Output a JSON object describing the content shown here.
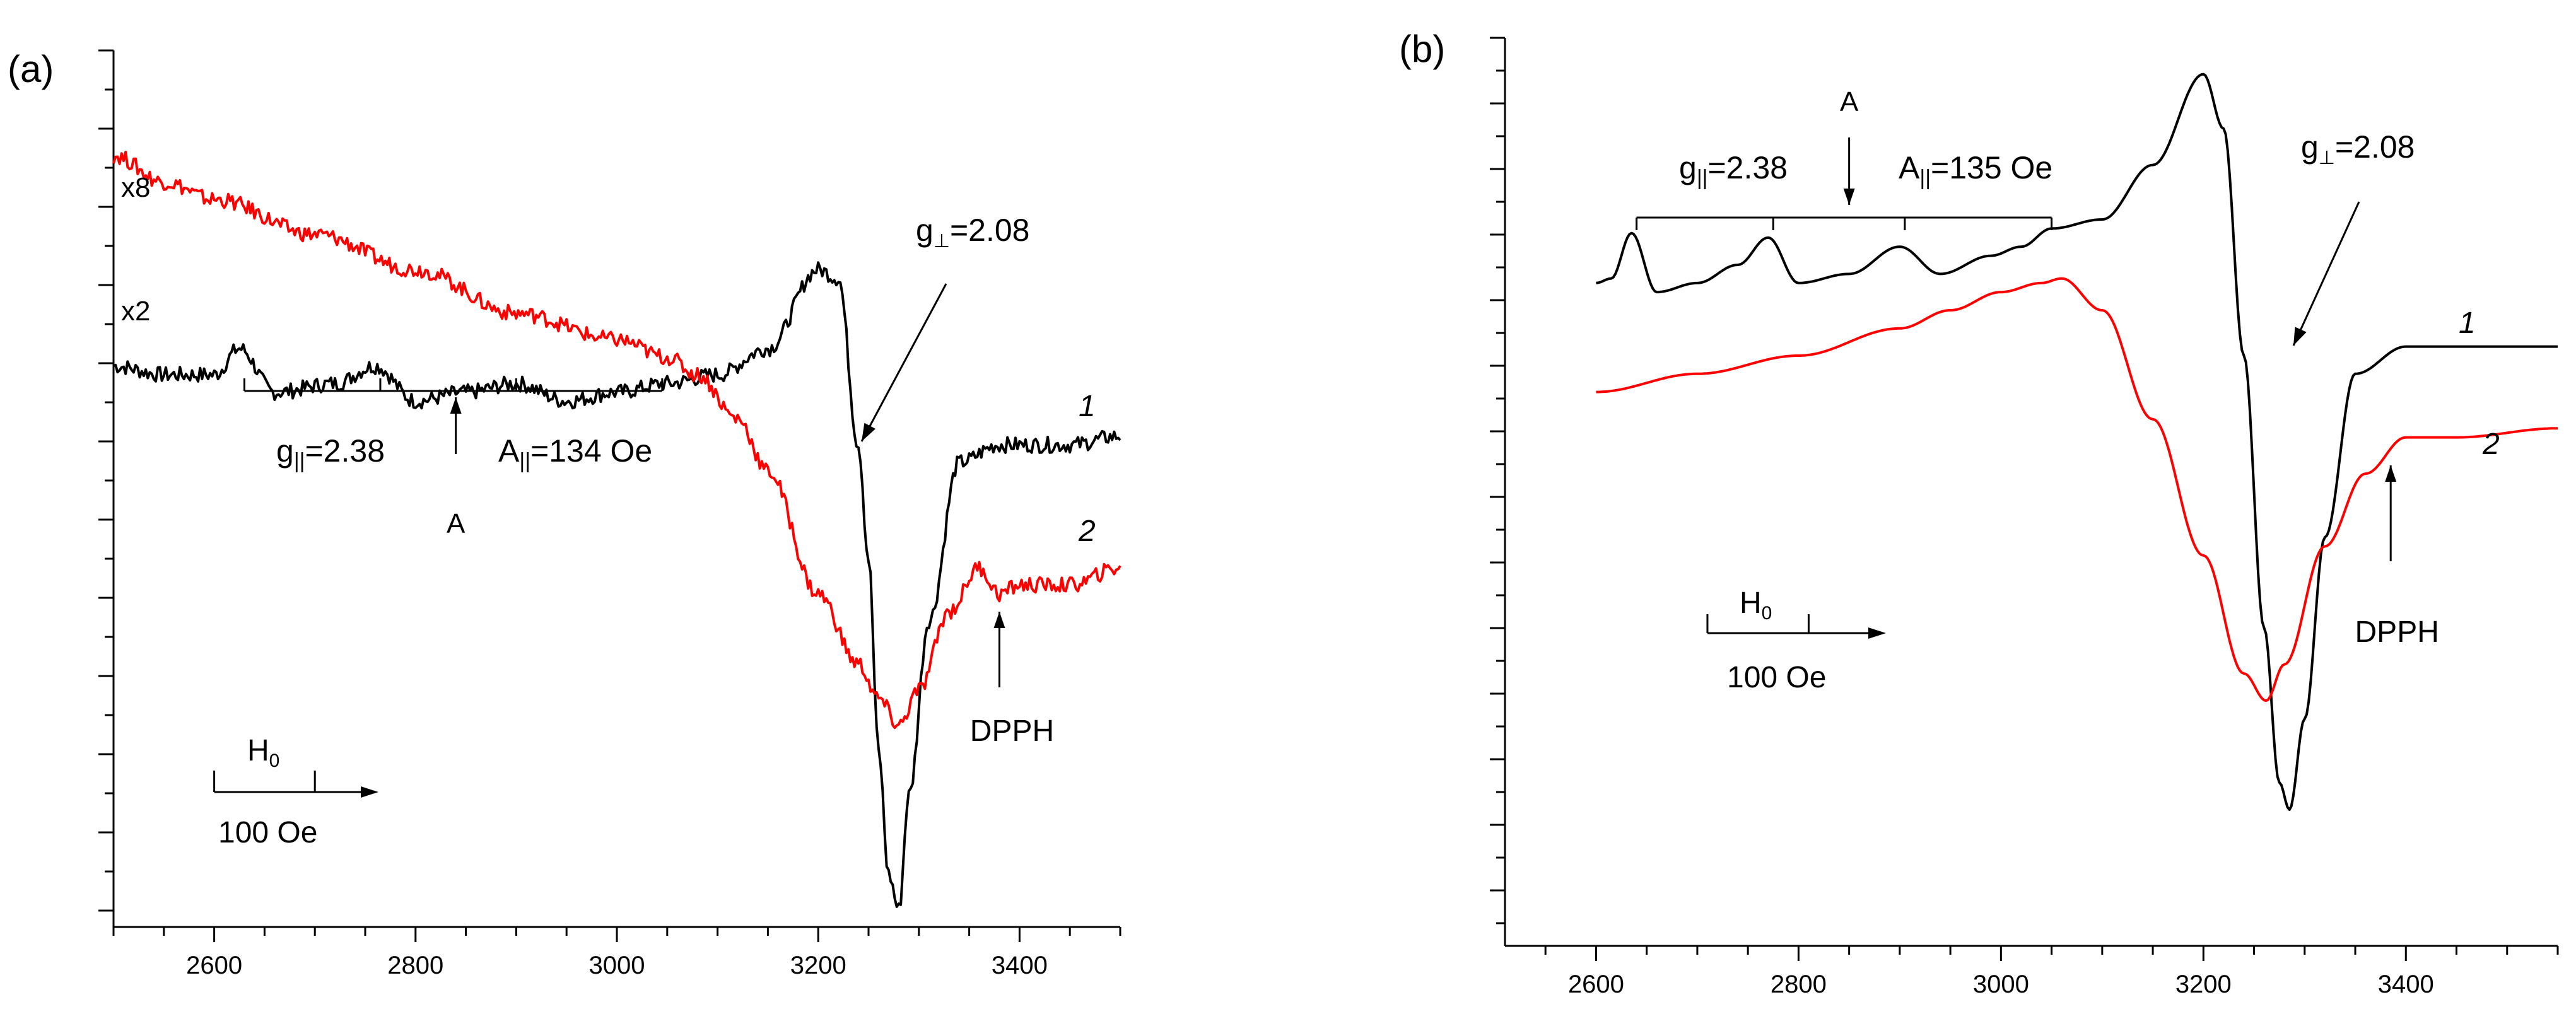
{
  "chart_data": [
    {
      "type": "line",
      "panel_label": "(a)",
      "xlim": [
        2500,
        3500
      ],
      "ylim": [
        0,
        10
      ],
      "xticks": [
        2600,
        2800,
        3000,
        3200,
        3400
      ],
      "series": [
        {
          "name": "1",
          "multiplier": "x2",
          "color": "#000000",
          "points": [
            [
              2500,
              6.4
            ],
            [
              2550,
              6.3
            ],
            [
              2600,
              6.3
            ],
            [
              2625,
              6.6
            ],
            [
              2660,
              6.1
            ],
            [
              2720,
              6.2
            ],
            [
              2760,
              6.4
            ],
            [
              2800,
              6.0
            ],
            [
              2850,
              6.1
            ],
            [
              2900,
              6.2
            ],
            [
              2950,
              6.0
            ],
            [
              3000,
              6.1
            ],
            [
              3050,
              6.2
            ],
            [
              3100,
              6.3
            ],
            [
              3150,
              6.6
            ],
            [
              3200,
              7.5
            ],
            [
              3220,
              7.4
            ],
            [
              3240,
              5.5
            ],
            [
              3250,
              4.2
            ],
            [
              3260,
              2.0
            ],
            [
              3270,
              0.6
            ],
            [
              3280,
              0.2
            ],
            [
              3290,
              1.5
            ],
            [
              3310,
              3.5
            ],
            [
              3340,
              5.3
            ],
            [
              3380,
              5.5
            ],
            [
              3450,
              5.5
            ],
            [
              3500,
              5.6
            ]
          ]
        },
        {
          "name": "2",
          "multiplier": "x8",
          "color": "#ff0000",
          "points": [
            [
              2500,
              8.8
            ],
            [
              2550,
              8.5
            ],
            [
              2600,
              8.3
            ],
            [
              2700,
              7.9
            ],
            [
              2800,
              7.5
            ],
            [
              2900,
              7.0
            ],
            [
              3000,
              6.7
            ],
            [
              3050,
              6.5
            ],
            [
              3080,
              6.3
            ],
            [
              3120,
              5.8
            ],
            [
              3150,
              5.2
            ],
            [
              3200,
              3.8
            ],
            [
              3240,
              3.0
            ],
            [
              3260,
              2.6
            ],
            [
              3280,
              2.3
            ],
            [
              3300,
              2.7
            ],
            [
              3330,
              3.6
            ],
            [
              3360,
              4.1
            ],
            [
              3380,
              3.8
            ],
            [
              3400,
              3.9
            ],
            [
              3450,
              3.9
            ],
            [
              3500,
              4.1
            ]
          ]
        }
      ],
      "curve_labels": [
        "1",
        "2"
      ],
      "multiplier_labels": [
        "x8",
        "x2"
      ],
      "g_parallel_label": "g",
      "g_parallel_sub": "||",
      "g_parallel_value": "=2.38",
      "a_parallel_label": "A",
      "a_parallel_sub": "||",
      "a_parallel_value": "=134 Oe",
      "arrow_label_A": "A",
      "g_perp_label": "g",
      "g_perp_sub": "⊥",
      "g_perp_value": "=2.08",
      "dpph_label": "DPPH",
      "field_label": "H",
      "field_sub": "0",
      "scale_label": "100 Oe",
      "hyperfine_ticks": [
        2630,
        2765,
        2900,
        3045
      ],
      "arrow_A_x": 2840,
      "dpph_x": 3380,
      "scale_bar": [
        2600,
        2700
      ]
    },
    {
      "type": "line",
      "panel_label": "(b)",
      "xlim": [
        2510,
        3550
      ],
      "ylim": [
        0,
        10
      ],
      "xticks": [
        2600,
        2800,
        3000,
        3200,
        3400
      ],
      "series": [
        {
          "name": "1",
          "color": "#000000",
          "points": [
            [
              2600,
              7.3
            ],
            [
              2615,
              7.35
            ],
            [
              2635,
              7.85
            ],
            [
              2660,
              7.2
            ],
            [
              2700,
              7.3
            ],
            [
              2740,
              7.5
            ],
            [
              2770,
              7.8
            ],
            [
              2800,
              7.3
            ],
            [
              2850,
              7.4
            ],
            [
              2900,
              7.7
            ],
            [
              2940,
              7.4
            ],
            [
              2990,
              7.6
            ],
            [
              3020,
              7.7
            ],
            [
              3050,
              7.9
            ],
            [
              3100,
              8.0
            ],
            [
              3150,
              8.6
            ],
            [
              3200,
              9.6
            ],
            [
              3220,
              9.0
            ],
            [
              3240,
              6.5
            ],
            [
              3260,
              3.5
            ],
            [
              3275,
              1.8
            ],
            [
              3285,
              1.5
            ],
            [
              3300,
              2.5
            ],
            [
              3320,
              4.5
            ],
            [
              3350,
              6.3
            ],
            [
              3400,
              6.6
            ],
            [
              3450,
              6.6
            ],
            [
              3550,
              6.6
            ]
          ]
        },
        {
          "name": "2",
          "color": "#ff0000",
          "points": [
            [
              2600,
              6.1
            ],
            [
              2700,
              6.3
            ],
            [
              2800,
              6.5
            ],
            [
              2900,
              6.8
            ],
            [
              2950,
              7.0
            ],
            [
              3000,
              7.2
            ],
            [
              3040,
              7.3
            ],
            [
              3060,
              7.35
            ],
            [
              3100,
              7.0
            ],
            [
              3150,
              5.8
            ],
            [
              3200,
              4.3
            ],
            [
              3240,
              3.0
            ],
            [
              3262,
              2.7
            ],
            [
              3280,
              3.1
            ],
            [
              3320,
              4.4
            ],
            [
              3360,
              5.2
            ],
            [
              3400,
              5.6
            ],
            [
              3450,
              5.6
            ],
            [
              3550,
              5.7
            ]
          ]
        }
      ],
      "curve_labels": [
        "1",
        "2"
      ],
      "arrow_label_A": "A",
      "g_parallel_label": "g",
      "g_parallel_sub": "||",
      "g_parallel_value": "=2.38",
      "a_parallel_label": "A",
      "a_parallel_sub": "||",
      "a_parallel_value": "=135 Oe",
      "g_perp_label": "g",
      "g_perp_sub": "⊥",
      "g_perp_value": "=2.08",
      "dpph_label": "DPPH",
      "field_label": "H",
      "field_sub": "0",
      "scale_label": "100 Oe",
      "hyperfine_ticks": [
        2640,
        2775,
        2905,
        3050
      ],
      "arrow_A_x": 2850,
      "dpph_x": 3385,
      "scale_bar": [
        2710,
        2810
      ]
    }
  ]
}
